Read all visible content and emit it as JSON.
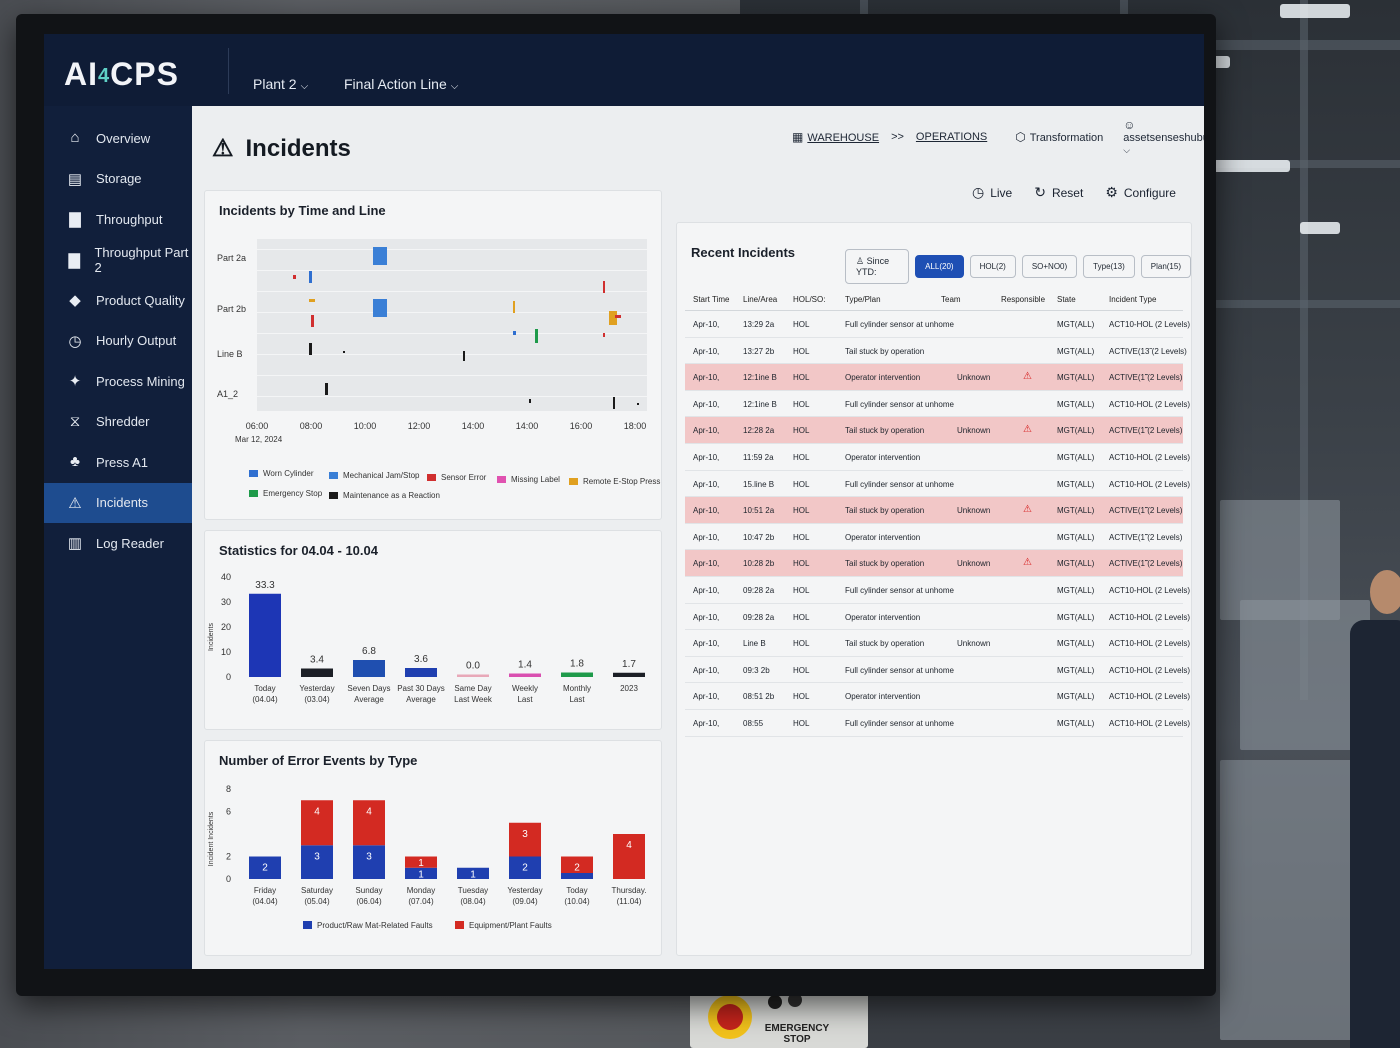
{
  "app": {
    "logo_main": "AI",
    "logo_four": "4",
    "logo_tail": "CPS",
    "plant_select": "Plant 2",
    "line_select": "Final Action Line"
  },
  "sidebar": {
    "items": [
      {
        "label": "Overview",
        "icon": "home-icon"
      },
      {
        "label": "Storage",
        "icon": "storage-icon"
      },
      {
        "label": "Throughput",
        "icon": "bar-chart-icon"
      },
      {
        "label": "Throughput Part 2",
        "icon": "bar-chart-icon"
      },
      {
        "label": "Product Quality",
        "icon": "quality-icon"
      },
      {
        "label": "Hourly Output",
        "icon": "clock-icon"
      },
      {
        "label": "Process Mining",
        "icon": "process-icon"
      },
      {
        "label": "Shredder",
        "icon": "shredder-icon"
      },
      {
        "label": "Press A1",
        "icon": "press-icon"
      },
      {
        "label": "Incidents",
        "icon": "warning-icon"
      },
      {
        "label": "Log Reader",
        "icon": "document-icon"
      }
    ],
    "active": "Incidents"
  },
  "header": {
    "title": "Incidents",
    "breadcrumb_1": "WAREHOUSE",
    "breadcrumb_sep": ">>",
    "breadcrumb_2": "OPERATIONS",
    "transformation": "Transformation",
    "user": "assetsenseshubuser",
    "live": "Live",
    "reset": "Reset",
    "configure": "Configure"
  },
  "timeline": {
    "title": "Incidents by Time and Line",
    "rows": [
      "Part 2a",
      "Part 2b",
      "Line B",
      "A1_2"
    ],
    "x_ticks": [
      "06:00",
      "08:00",
      "10:00",
      "12:00",
      "14:00",
      "14:00",
      "16:00",
      "18:00"
    ],
    "date_label": "Mar 12, 2024",
    "legend": [
      {
        "label": "Worn Cylinder",
        "color": "#2f6fd0"
      },
      {
        "label": "Mechanical Jam/Stop",
        "color": "#3a7fd6"
      },
      {
        "label": "Sensor Error",
        "color": "#d02f2f"
      },
      {
        "label": "Missing Label",
        "color": "#e052b0"
      },
      {
        "label": "Remote E-Stop Press",
        "color": "#e0a020"
      },
      {
        "label": "Emergency Stop",
        "color": "#1e9a4a"
      },
      {
        "label": "Maintenance as a Reaction",
        "color": "#1a1a1a"
      }
    ]
  },
  "stats": {
    "title": "Statistics for 04.04 - 10.04",
    "ylabel": "Incidents",
    "yticks": [
      "40",
      "30",
      "20",
      "10",
      "0"
    ]
  },
  "errors": {
    "title": "Number of Error Events by Type",
    "ylabel": "Incident Incidents",
    "yticks": [
      "8",
      "6",
      "2",
      "0"
    ],
    "legend": [
      {
        "label": "Product/Raw Mat-Related Faults",
        "color": "#1f3fb0"
      },
      {
        "label": "Equipment/Plant Faults",
        "color": "#d32a22"
      }
    ]
  },
  "chart_data": [
    {
      "type": "bar",
      "title": "Statistics for 04.04 - 10.04",
      "ylabel": "Incidents",
      "ylim": [
        0,
        40
      ],
      "categories": [
        "Today\n(04.04)",
        "Yesterday\n(03.04)",
        "Seven Days\nAverage",
        "Past 30 Days\nAverage",
        "Same Day\nLast Week",
        "Weekly\nLast",
        "Monthly\nLast",
        "2023"
      ],
      "values": [
        33.3,
        3.4,
        6.8,
        3.6,
        0.0,
        1.4,
        1.8,
        1.7
      ],
      "value_labels": [
        "33.3",
        "3.4",
        "6.8",
        "3.6",
        "0.0",
        "1.4",
        "1.8",
        "1.7"
      ],
      "colors": [
        "#1d36b5",
        "#1c1f26",
        "#1f4fb0",
        "#1f3fb0",
        "#e8a8b8",
        "#d94fb0",
        "#1e9a4a",
        "#1c1f26"
      ]
    },
    {
      "type": "bar",
      "title": "Number of Error Events by Type",
      "ylabel": "Incident Incidents",
      "ylim": [
        0,
        8
      ],
      "categories": [
        "Friday\n(04.04)",
        "Saturday\n(05.04)",
        "Sunday\n(06.04)",
        "Monday\n(07.04)",
        "Tuesday\n(08.04)",
        "Yesterday\n(09.04)",
        "Today\n(10.04)",
        "Thursday.\n(11.04)"
      ],
      "series": [
        {
          "name": "Product/Raw Mat-Related Faults",
          "values": [
            2,
            3,
            3,
            1,
            1,
            2,
            0,
            0
          ],
          "labels": [
            "2",
            "3",
            "3",
            "1",
            "1",
            "2",
            "",
            ""
          ]
        },
        {
          "name": "Equipment/Plant Faults",
          "values": [
            0,
            4,
            4,
            1,
            0,
            3,
            2,
            4
          ],
          "labels": [
            "",
            "4",
            "4",
            "1",
            "",
            "3",
            "2",
            "4"
          ]
        }
      ]
    }
  ],
  "recent": {
    "title": "Recent Incidents",
    "since": "Since YTD:",
    "filters": [
      "ALL(20)",
      "HOL(2)",
      "SO+NO0)",
      "Type(13)",
      "Plan(15)"
    ],
    "columns": [
      "Start Time",
      "Line/Area",
      "HOL/SO:",
      "Type/Plan",
      "Team",
      "Responsible",
      "State",
      "Incident Type"
    ],
    "rows": [
      {
        "date": "Apr-10,",
        "time": "13:29 2a",
        "hol": "HOL",
        "type": "Full cylinder sensor at unhome",
        "team": "",
        "alert": false,
        "state": "MGT(ALL)",
        "itype": "ACT10-HOL (2 Levels)"
      },
      {
        "date": "Apr-10,",
        "time": "13:27 2b",
        "hol": "HOL",
        "type": "Tail stuck by operation",
        "team": "",
        "alert": false,
        "state": "MGT(ALL)",
        "itype": "ACTIVE(13̃ (2 Levels)"
      },
      {
        "date": "Apr-10,",
        "time": "12:1ine B",
        "hol": "HOL",
        "type": "Operator intervention",
        "team": "Unknown",
        "alert": true,
        "state": "MGT(ALL)",
        "itype": "ACTIVE(1̃̃ (2 Levels)"
      },
      {
        "date": "Apr-10,",
        "time": "12:1ine B",
        "hol": "HOL",
        "type": "Full cylinder sensor at unhome",
        "team": "",
        "alert": false,
        "state": "MGT(ALL)",
        "itype": "ACT10-HOL (2 Levels)"
      },
      {
        "date": "Apr-10,",
        "time": "12:28 2a",
        "hol": "HOL",
        "type": "Tail stuck by operation",
        "team": "Unknown",
        "alert": true,
        "state": "MGT(ALL)",
        "itype": "ACTIVE(1̃̃ (2 Levels)"
      },
      {
        "date": "Apr-10,",
        "time": "11:59 2a",
        "hol": "HOL",
        "type": "Operator intervention",
        "team": "",
        "alert": false,
        "state": "MGT(ALL)",
        "itype": "ACT10-HOL (2 Levels)"
      },
      {
        "date": "Apr-10,",
        "time": "15.line B",
        "hol": "HOL",
        "type": "Full cylinder sensor at unhome",
        "team": "",
        "alert": false,
        "state": "MGT(ALL)",
        "itype": "ACT10-HOL (2 Levels)"
      },
      {
        "date": "Apr-10,",
        "time": "10:51 2a",
        "hol": "HOL",
        "type": "Tail stuck by operation",
        "team": "Unknown",
        "alert": true,
        "state": "MGT(ALL)",
        "itype": "ACTIVE(1̃̃ (2 Levels)"
      },
      {
        "date": "Apr-10,",
        "time": "10:47 2b",
        "hol": "HOL",
        "type": "Operator intervention",
        "team": "",
        "alert": false,
        "state": "MGT(ALL)",
        "itype": "ACTIVE(1̃̃ (2 Levels)"
      },
      {
        "date": "Apr-10,",
        "time": "10:28 2b",
        "hol": "HOL",
        "type": "Tail stuck by operation",
        "team": "Unknown",
        "alert": true,
        "state": "MGT(ALL)",
        "itype": "ACTIVE(1̃̃ (2 Levels)"
      },
      {
        "date": "Apr-10,",
        "time": "09:28 2a",
        "hol": "HOL",
        "type": "Full cylinder sensor at unhome",
        "team": "",
        "alert": false,
        "state": "MGT(ALL)",
        "itype": "ACT10-HOL (2 Levels)"
      },
      {
        "date": "Apr-10,",
        "time": "09:28 2a",
        "hol": "HOL",
        "type": "Operator intervention",
        "team": "",
        "alert": false,
        "state": "MGT(ALL)",
        "itype": "ACT10-HOL (2 Levels)"
      },
      {
        "date": "Apr-10,",
        "time": "Line B",
        "hol": "HOL",
        "type": "Tail stuck by operation",
        "team": "Unknown",
        "alert": false,
        "state": "MGT(ALL)",
        "itype": "ACT10-HOL (2 Levels)"
      },
      {
        "date": "Apr-10,",
        "time": "09:3 2b",
        "hol": "HOL",
        "type": "Full cylinder sensor at unhome",
        "team": "",
        "alert": false,
        "state": "MGT(ALL)",
        "itype": "ACT10-HOL (2 Levels)"
      },
      {
        "date": "Apr-10,",
        "time": "08:51 2b",
        "hol": "HOL",
        "type": "Operator intervention",
        "team": "",
        "alert": false,
        "state": "MGT(ALL)",
        "itype": "ACT10-HOL (2 Levels)"
      },
      {
        "date": "Apr-10,",
        "time": "08:55",
        "hol": "HOL",
        "type": "Full cylinder sensor at unhome",
        "team": "",
        "alert": false,
        "state": "MGT(ALL)",
        "itype": "ACT10-HOL (2 Levels)"
      }
    ]
  },
  "environment": {
    "estop_label": "EMERGENCY STOP"
  }
}
